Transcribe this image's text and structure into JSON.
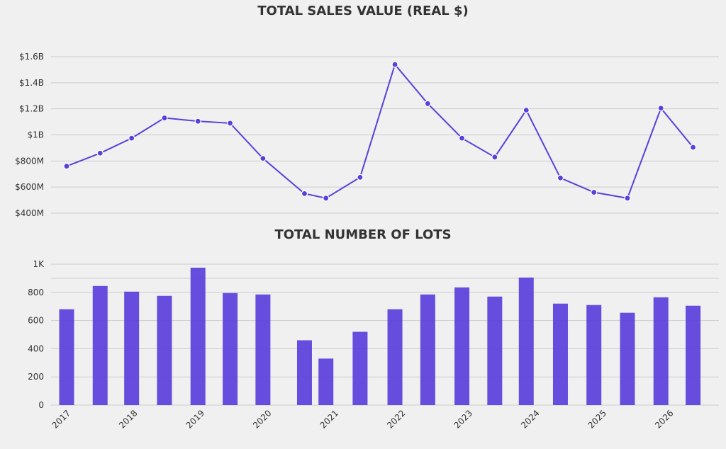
{
  "colors": {
    "background": "#f0f0f0",
    "series": "#5b3fdb",
    "grid": "#cccccc",
    "text": "#333333"
  },
  "chart_data": [
    {
      "type": "line",
      "title": "TOTAL SALES VALUE (REAL $)",
      "xlabel": "",
      "ylabel": "",
      "x": [
        2017.0,
        2017.5,
        2017.97,
        2018.46,
        2018.96,
        2019.44,
        2019.93,
        2020.55,
        2020.87,
        2021.38,
        2021.9,
        2022.39,
        2022.9,
        2023.39,
        2023.86,
        2024.37,
        2024.87,
        2025.37,
        2025.87,
        2026.35
      ],
      "values": [
        760,
        860,
        975,
        1130,
        1105,
        1090,
        820,
        550,
        515,
        675,
        1540,
        1240,
        975,
        830,
        1190,
        670,
        560,
        515,
        1205,
        905
      ],
      "unit": "millions USD",
      "ylim": [
        400,
        1600
      ],
      "yticks": [
        400,
        600,
        800,
        1000,
        1200,
        1400,
        1600
      ],
      "ytick_labels": [
        "$400M",
        "$600M",
        "$800M",
        "$1B",
        "$1.2B",
        "$1.4B",
        "$1.6B"
      ],
      "grid": true,
      "markers": true
    },
    {
      "type": "bar",
      "title": "TOTAL NUMBER OF LOTS",
      "xlabel": "",
      "ylabel": "",
      "x": [
        2017.0,
        2017.5,
        2017.97,
        2018.46,
        2018.96,
        2019.44,
        2019.93,
        2020.55,
        2020.87,
        2021.38,
        2021.9,
        2022.39,
        2022.9,
        2023.39,
        2023.86,
        2024.37,
        2024.87,
        2025.37,
        2025.87,
        2026.35
      ],
      "values": [
        680,
        845,
        805,
        775,
        975,
        795,
        785,
        460,
        330,
        520,
        680,
        785,
        835,
        770,
        905,
        720,
        710,
        655,
        765,
        705
      ],
      "ylim": [
        0,
        1000
      ],
      "yticks": [
        0,
        200,
        400,
        600,
        800,
        1000
      ],
      "ytick_labels": [
        "0",
        "200",
        "400",
        "600",
        "800",
        "1K"
      ],
      "grid": true,
      "xticks": [
        2017,
        2018,
        2019,
        2020,
        2021,
        2022,
        2023,
        2024,
        2025,
        2026
      ],
      "xtick_labels": [
        "2017",
        "2018",
        "2019",
        "2020",
        "2021",
        "2022",
        "2023",
        "2024",
        "2025",
        "2026"
      ]
    }
  ]
}
